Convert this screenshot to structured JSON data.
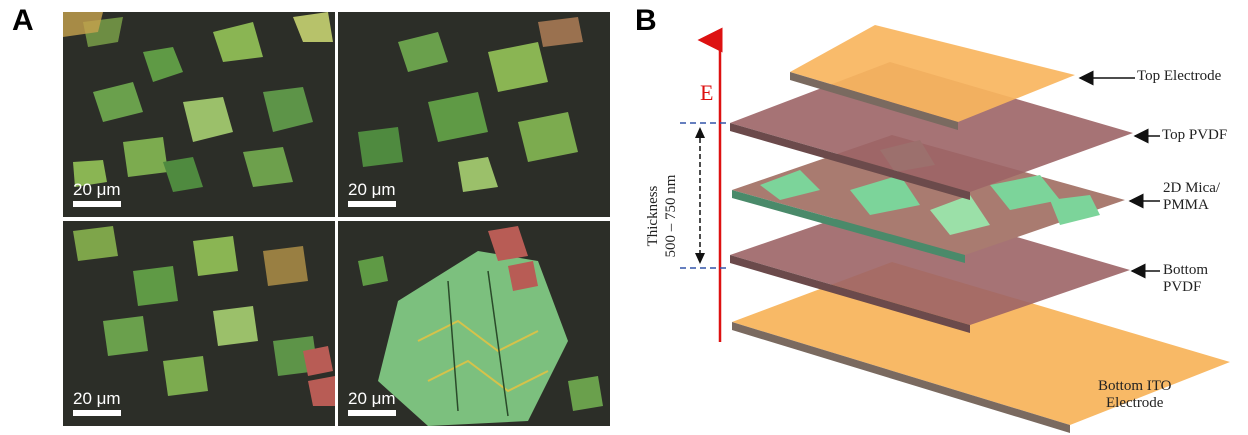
{
  "panel_a": {
    "letter": "A",
    "images": [
      {
        "scale_label": "20 μm"
      },
      {
        "scale_label": "20 μm"
      },
      {
        "scale_label": "20 μm"
      },
      {
        "scale_label": "20 μm"
      }
    ]
  },
  "panel_b": {
    "letter": "B",
    "field_label": "E",
    "thickness_line1": "Thickness",
    "thickness_line2": "500 – 750 nm",
    "labels": {
      "top_electrode": "Top Electrode",
      "top_pvdf": "Top PVDF",
      "mica_line1": "2D Mica/",
      "mica_line2": "PMMA",
      "bottom_pvdf_line1": "Bottom",
      "bottom_pvdf_line2": "PVDF",
      "bottom_ito_line1": "Bottom ITO",
      "bottom_ito_line2": "Electrode"
    },
    "colors": {
      "electrode": "#f8b55e",
      "pvdf": "#9c6466",
      "field_arrow": "#dd1111",
      "dash_line": "#3355aa"
    }
  }
}
